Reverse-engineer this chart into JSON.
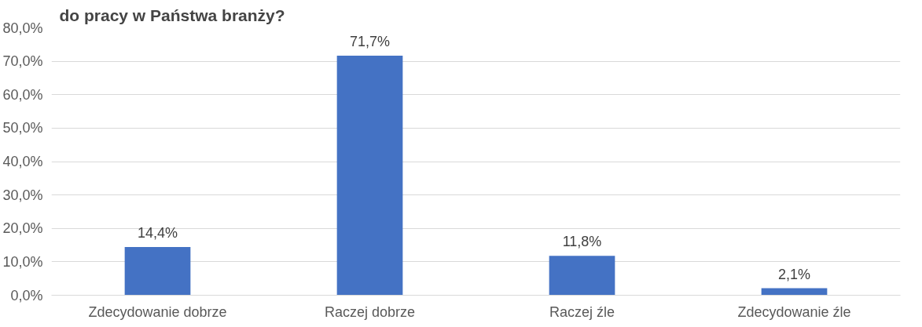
{
  "chart_data": {
    "type": "bar",
    "title": "do pracy w Państwa branży?",
    "categories": [
      "Zdecydowanie dobrze",
      "Raczej dobrze",
      "Raczej źle",
      "Zdecydowanie źle"
    ],
    "values": [
      14.4,
      71.7,
      11.8,
      2.1
    ],
    "value_labels": [
      "14,4%",
      "71,7%",
      "11,8%",
      "2,1%"
    ],
    "color": "#4472c4",
    "ylim": [
      0,
      80
    ],
    "yticks": [
      {
        "value": 0,
        "label": "0,0%"
      },
      {
        "value": 10,
        "label": "10,0%"
      },
      {
        "value": 20,
        "label": "20,0%"
      },
      {
        "value": 30,
        "label": "30,0%"
      },
      {
        "value": 40,
        "label": "40,0%"
      },
      {
        "value": 50,
        "label": "50,0%"
      },
      {
        "value": 60,
        "label": "60,0%"
      },
      {
        "value": 70,
        "label": "70,0%"
      },
      {
        "value": 80,
        "label": "80,0%"
      }
    ],
    "grid": "y"
  }
}
